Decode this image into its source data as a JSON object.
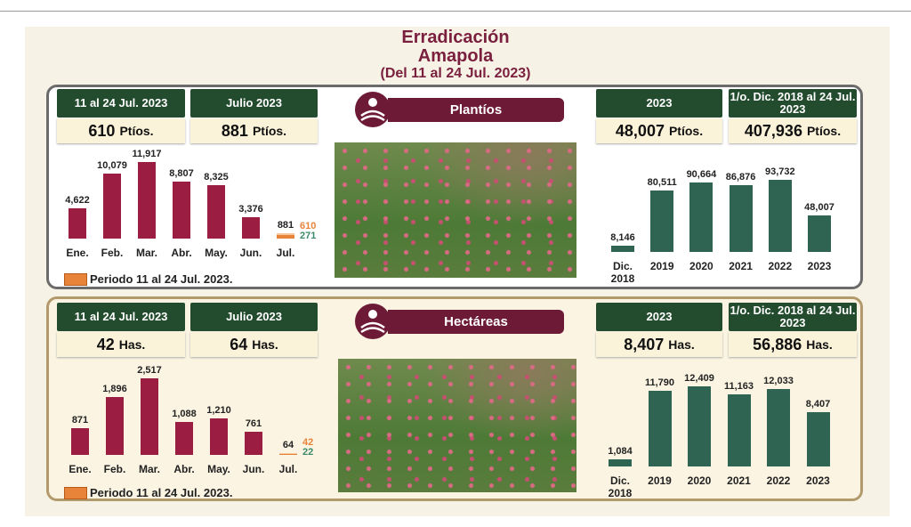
{
  "header": {
    "title": "Erradicación Amapola",
    "subtitle": "(Del 11 al 24 Jul. 2023)"
  },
  "panels": [
    {
      "label": "Plantíos",
      "boxes": [
        {
          "header": "11 al 24 Jul. 2023",
          "value": "610",
          "unit": "Ptíos."
        },
        {
          "header": "Julio 2023",
          "value": "881",
          "unit": "Ptíos."
        },
        {
          "header": "2023",
          "value": "48,007",
          "unit": "Ptíos."
        },
        {
          "header": "1/o. Dic. 2018 al 24 Jul. 2023",
          "value": "407,936",
          "unit": "Ptíos."
        }
      ]
    },
    {
      "label": "Hectáreas",
      "boxes": [
        {
          "header": "11 al 24 Jul. 2023",
          "value": "42",
          "unit": "Has."
        },
        {
          "header": "Julio 2023",
          "value": "64",
          "unit": "Has."
        },
        {
          "header": "2023",
          "value": "8,407",
          "unit": "Has."
        },
        {
          "header": "1/o. Dic. 2018 al 24 Jul. 2023",
          "value": "56,886",
          "unit": "Has."
        }
      ]
    }
  ],
  "chart_data": [
    {
      "type": "bar",
      "categories": [
        "Ene.",
        "Feb.",
        "Mar.",
        "Abr.",
        "May.",
        "Jun.",
        "Jul."
      ],
      "values": [
        4622,
        10079,
        11917,
        8807,
        8325,
        3376,
        881
      ],
      "value_labels": [
        "4,622",
        "10,079",
        "11,917",
        "8,807",
        "8,325",
        "3,376",
        "881"
      ],
      "color": "#9c1d42",
      "ylim": [
        0,
        12000
      ],
      "highlight": {
        "label": "Periodo 11 al 24 Jul. 2023.",
        "color": "#e8833a",
        "values": [
          610,
          271
        ],
        "value_colors": [
          "#e8833a",
          "#3c8a6a"
        ]
      }
    },
    {
      "type": "bar",
      "categories": [
        "Dic. 2018",
        "2019",
        "2020",
        "2021",
        "2022",
        "2023"
      ],
      "values": [
        8146,
        80511,
        90664,
        86876,
        93732,
        48007
      ],
      "value_labels": [
        "8,146",
        "80,511",
        "90,664",
        "86,876",
        "93,732",
        "48,007"
      ],
      "color": "#2f6352",
      "ylim": [
        0,
        100000
      ]
    },
    {
      "type": "bar",
      "categories": [
        "Ene.",
        "Feb.",
        "Mar.",
        "Abr.",
        "May.",
        "Jun.",
        "Jul."
      ],
      "values": [
        871,
        1896,
        2517,
        1088,
        1210,
        761,
        64
      ],
      "value_labels": [
        "871",
        "1,896",
        "2,517",
        "1,088",
        "1,210",
        "761",
        "64"
      ],
      "color": "#9c1d42",
      "ylim": [
        0,
        2600
      ],
      "highlight": {
        "label": "Periodo 11 al 24 Jul. 2023.",
        "color": "#e8833a",
        "values": [
          42,
          22
        ],
        "value_colors": [
          "#e8833a",
          "#3c8a6a"
        ]
      }
    },
    {
      "type": "bar",
      "categories": [
        "Dic. 2018",
        "2019",
        "2020",
        "2021",
        "2022",
        "2023"
      ],
      "values": [
        1084,
        11790,
        12409,
        11163,
        12033,
        8407
      ],
      "value_labels": [
        "1,084",
        "11,790",
        "12,409",
        "11,163",
        "12,033",
        "8,407"
      ],
      "color": "#2f6352",
      "ylim": [
        0,
        13000
      ]
    }
  ]
}
